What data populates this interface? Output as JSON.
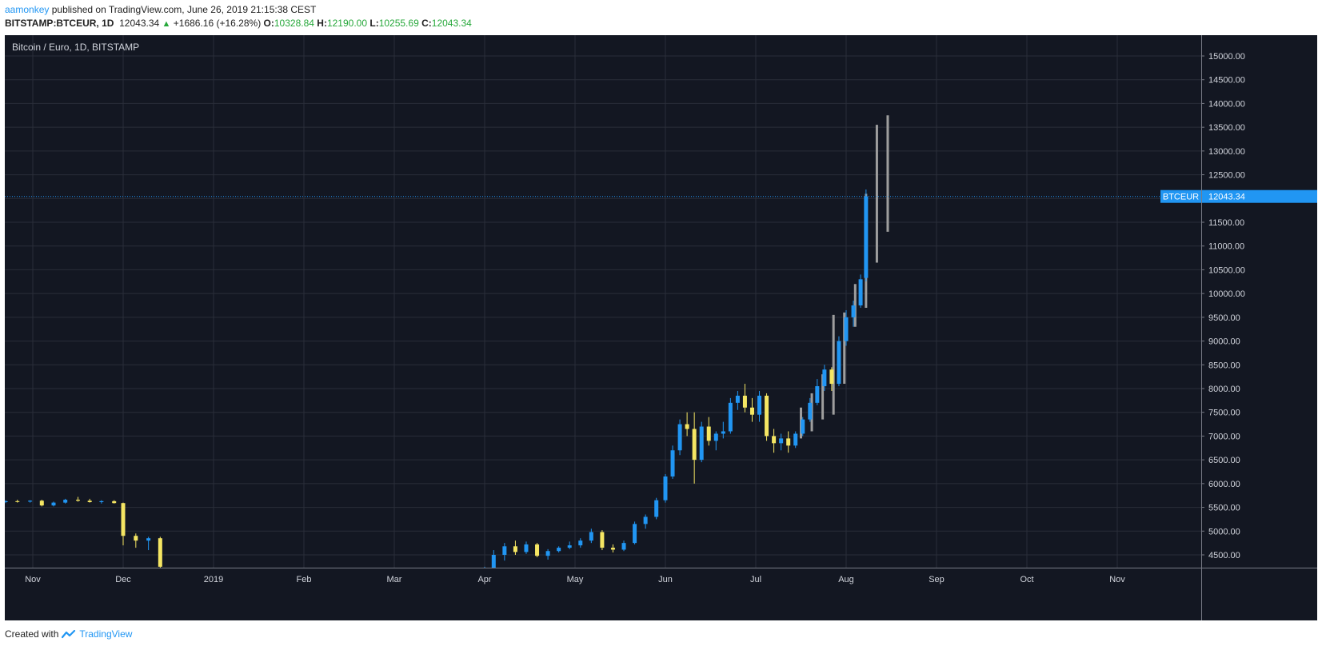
{
  "header": {
    "user": "aamonkey",
    "published": "published on TradingView.com, June 26, 2019 21:15:38 CEST"
  },
  "ohlc_bar": {
    "symbol": "BITSTAMP:BTCEUR, 1D",
    "last": "12043.34",
    "change": "+1686.16 (+16.28%)",
    "o_label": "O:",
    "o": "10328.84",
    "h_label": "H:",
    "h": "12190.00",
    "l_label": "L:",
    "l": "10255.69",
    "c_label": "C:",
    "c": "12043.34"
  },
  "footer": {
    "created_with": "Created with",
    "brand": "TradingView"
  },
  "colors": {
    "background": "#131722",
    "grid": "#2a2e39",
    "axis_text": "#d1d4dc",
    "up_candle": "#2196f3",
    "down_candle": "#f5e663",
    "projection": "#9e9e9e",
    "price_line": "#2196f3",
    "gain": "#27a83b",
    "accent": "#2196f3"
  },
  "chart_data": {
    "type": "candlestick",
    "title": "Bitcoin / Euro, 1D, BITSTAMP",
    "x_labels": [
      "Nov",
      "Dec",
      "2019",
      "Feb",
      "Mar",
      "Apr",
      "May",
      "Jun",
      "Jul",
      "Aug",
      "Sep",
      "Oct",
      "Nov"
    ],
    "y_ticks": [
      "4500.00",
      "5000.00",
      "5500.00",
      "6000.00",
      "6500.00",
      "7000.00",
      "7500.00",
      "8000.00",
      "8500.00",
      "9000.00",
      "9500.00",
      "10000.00",
      "10500.00",
      "11000.00",
      "11500.00",
      "12000.00",
      "12500.00",
      "13000.00",
      "13500.00",
      "14000.00",
      "14500.00",
      "15000.00"
    ],
    "ylim": [
      4200,
      15500
    ],
    "xlim": [
      0,
      13.5
    ],
    "current_price": {
      "label": "BTCEUR",
      "value": "12043.34",
      "price": 12043.34
    },
    "series": [
      {
        "note_hist": "x in months from Nov 1 (month boundaries at integers); o/h/l/c in EUR",
        "candles": [
          {
            "x": -0.3,
            "o": 5610,
            "h": 5650,
            "l": 5590,
            "c": 5630
          },
          {
            "x": -0.17,
            "o": 5630,
            "h": 5660,
            "l": 5600,
            "c": 5620
          },
          {
            "x": -0.03,
            "o": 5620,
            "h": 5650,
            "l": 5600,
            "c": 5640
          },
          {
            "x": 0.1,
            "o": 5640,
            "h": 5660,
            "l": 5520,
            "c": 5540
          },
          {
            "x": 0.23,
            "o": 5540,
            "h": 5620,
            "l": 5520,
            "c": 5600
          },
          {
            "x": 0.36,
            "o": 5600,
            "h": 5680,
            "l": 5580,
            "c": 5660
          },
          {
            "x": 0.5,
            "o": 5660,
            "h": 5720,
            "l": 5620,
            "c": 5640
          },
          {
            "x": 0.63,
            "o": 5640,
            "h": 5680,
            "l": 5600,
            "c": 5610
          },
          {
            "x": 0.76,
            "o": 5610,
            "h": 5650,
            "l": 5580,
            "c": 5630
          },
          {
            "x": 0.9,
            "o": 5630,
            "h": 5650,
            "l": 5580,
            "c": 5590
          },
          {
            "x": 1.0,
            "o": 5590,
            "h": 5600,
            "l": 4700,
            "c": 4900
          },
          {
            "x": 1.14,
            "o": 4900,
            "h": 4950,
            "l": 4650,
            "c": 4800
          },
          {
            "x": 1.28,
            "o": 4800,
            "h": 4880,
            "l": 4600,
            "c": 4850
          },
          {
            "x": 1.41,
            "o": 4850,
            "h": 4880,
            "l": 4200,
            "c": 4250
          },
          {
            "x": 5.0,
            "o": 4200,
            "h": 4250,
            "l": 4200,
            "c": 4220
          },
          {
            "x": 5.1,
            "o": 4220,
            "h": 4600,
            "l": 4200,
            "c": 4500
          },
          {
            "x": 5.22,
            "o": 4500,
            "h": 4750,
            "l": 4380,
            "c": 4680
          },
          {
            "x": 5.34,
            "o": 4680,
            "h": 4800,
            "l": 4500,
            "c": 4560
          },
          {
            "x": 5.46,
            "o": 4560,
            "h": 4780,
            "l": 4520,
            "c": 4720
          },
          {
            "x": 5.58,
            "o": 4720,
            "h": 4750,
            "l": 4450,
            "c": 4480
          },
          {
            "x": 5.7,
            "o": 4480,
            "h": 4620,
            "l": 4400,
            "c": 4580
          },
          {
            "x": 5.82,
            "o": 4580,
            "h": 4680,
            "l": 4550,
            "c": 4650
          },
          {
            "x": 5.94,
            "o": 4650,
            "h": 4780,
            "l": 4620,
            "c": 4700
          },
          {
            "x": 6.06,
            "o": 4700,
            "h": 4850,
            "l": 4650,
            "c": 4800
          },
          {
            "x": 6.18,
            "o": 4800,
            "h": 5050,
            "l": 4750,
            "c": 4980
          },
          {
            "x": 6.3,
            "o": 4980,
            "h": 5020,
            "l": 4600,
            "c": 4650
          },
          {
            "x": 6.42,
            "o": 4650,
            "h": 4720,
            "l": 4550,
            "c": 4610
          },
          {
            "x": 6.54,
            "o": 4610,
            "h": 4800,
            "l": 4580,
            "c": 4750
          },
          {
            "x": 6.66,
            "o": 4750,
            "h": 5200,
            "l": 4720,
            "c": 5150
          },
          {
            "x": 6.78,
            "o": 5150,
            "h": 5350,
            "l": 5050,
            "c": 5300
          },
          {
            "x": 6.9,
            "o": 5300,
            "h": 5700,
            "l": 5250,
            "c": 5650
          },
          {
            "x": 7.0,
            "o": 5650,
            "h": 6200,
            "l": 5600,
            "c": 6150
          },
          {
            "x": 7.08,
            "o": 6150,
            "h": 6800,
            "l": 6100,
            "c": 6700
          },
          {
            "x": 7.16,
            "o": 6700,
            "h": 7350,
            "l": 6600,
            "c": 7250
          },
          {
            "x": 7.24,
            "o": 7250,
            "h": 7500,
            "l": 7000,
            "c": 7150
          },
          {
            "x": 7.32,
            "o": 7150,
            "h": 7500,
            "l": 6000,
            "c": 6500
          },
          {
            "x": 7.4,
            "o": 6500,
            "h": 7300,
            "l": 6450,
            "c": 7200
          },
          {
            "x": 7.48,
            "o": 7200,
            "h": 7400,
            "l": 6800,
            "c": 6900
          },
          {
            "x": 7.56,
            "o": 6900,
            "h": 7100,
            "l": 6700,
            "c": 7050
          },
          {
            "x": 7.64,
            "o": 7050,
            "h": 7300,
            "l": 6950,
            "c": 7100
          },
          {
            "x": 7.72,
            "o": 7100,
            "h": 7800,
            "l": 7050,
            "c": 7700
          },
          {
            "x": 7.8,
            "o": 7700,
            "h": 7950,
            "l": 7550,
            "c": 7850
          },
          {
            "x": 7.88,
            "o": 7850,
            "h": 8100,
            "l": 7500,
            "c": 7600
          },
          {
            "x": 7.96,
            "o": 7600,
            "h": 7800,
            "l": 7300,
            "c": 7450
          },
          {
            "x": 8.04,
            "o": 7450,
            "h": 7950,
            "l": 7300,
            "c": 7850
          },
          {
            "x": 8.12,
            "o": 7850,
            "h": 7900,
            "l": 6900,
            "c": 7000
          },
          {
            "x": 8.2,
            "o": 7000,
            "h": 7150,
            "l": 6650,
            "c": 6850
          },
          {
            "x": 8.28,
            "o": 6850,
            "h": 7050,
            "l": 6700,
            "c": 6950
          },
          {
            "x": 8.36,
            "o": 6950,
            "h": 7100,
            "l": 6650,
            "c": 6800
          },
          {
            "x": 8.44,
            "o": 6800,
            "h": 7100,
            "l": 6750,
            "c": 7050
          },
          {
            "x": 8.52,
            "o": 7050,
            "h": 7400,
            "l": 7000,
            "c": 7350
          },
          {
            "x": 8.6,
            "o": 7350,
            "h": 7800,
            "l": 7300,
            "c": 7700
          },
          {
            "x": 8.68,
            "o": 7700,
            "h": 8200,
            "l": 7650,
            "c": 8050
          },
          {
            "x": 8.76,
            "o": 8050,
            "h": 8500,
            "l": 7950,
            "c": 8400
          },
          {
            "x": 8.84,
            "o": 8400,
            "h": 8450,
            "l": 7950,
            "c": 8100
          },
          {
            "x": 8.92,
            "o": 8100,
            "h": 9100,
            "l": 8050,
            "c": 9000
          },
          {
            "x": 9.0,
            "o": 9000,
            "h": 9650,
            "l": 8900,
            "c": 9500
          },
          {
            "x": 9.08,
            "o": 9500,
            "h": 9850,
            "l": 9300,
            "c": 9750
          },
          {
            "x": 9.16,
            "o": 9750,
            "h": 10400,
            "l": 9700,
            "c": 10300
          },
          {
            "x": 9.22,
            "o": 10328.84,
            "h": 12190,
            "l": 10255.69,
            "c": 12043.34
          }
        ]
      }
    ],
    "projection": {
      "bars": [
        {
          "x": 8.5,
          "h": 7600,
          "l": 6950
        },
        {
          "x": 8.62,
          "h": 7900,
          "l": 7100
        },
        {
          "x": 8.74,
          "h": 8300,
          "l": 7350
        },
        {
          "x": 8.86,
          "h": 9550,
          "l": 7450
        },
        {
          "x": 8.98,
          "h": 9600,
          "l": 8100
        },
        {
          "x": 9.1,
          "h": 10200,
          "l": 9300
        },
        {
          "x": 9.22,
          "h": 12100,
          "l": 9700
        },
        {
          "x": 9.34,
          "h": 13550,
          "l": 10650
        },
        {
          "x": 9.46,
          "h": 13750,
          "l": 11300
        }
      ]
    }
  }
}
